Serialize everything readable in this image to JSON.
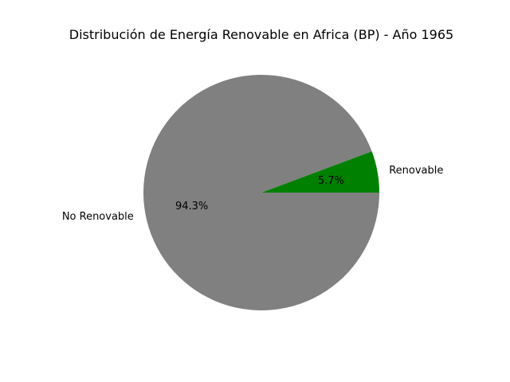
{
  "chart_data": {
    "type": "pie",
    "title": "Distribución de Energía Renovable en Africa (BP) - Año 1965",
    "slices": [
      {
        "label": "Renovable",
        "value": 5.7,
        "pct_label": "5.7%",
        "color": "#008000"
      },
      {
        "label": "No Renovable",
        "value": 94.3,
        "pct_label": "94.3%",
        "color": "#808080"
      }
    ],
    "start_angle_deg": 0,
    "direction": "counterclockwise"
  }
}
